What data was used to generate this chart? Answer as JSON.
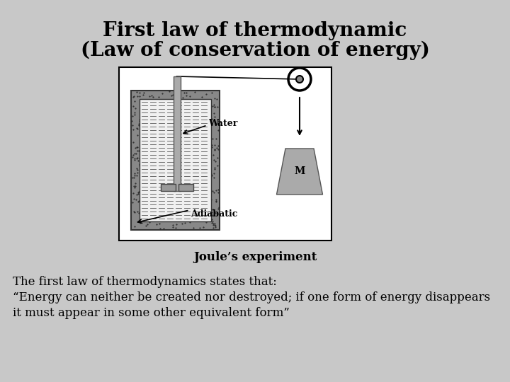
{
  "title_line1": "First law of thermodynamic",
  "title_line2": "(Law of conservation of energy)",
  "caption": "Joule’s experiment",
  "body_line1": "The first law of thermodynamics states that:",
  "body_line2": "“Energy can neither be created nor destroyed; if one form of energy disappears",
  "body_line3": "it must appear in some other equivalent form”",
  "bg_color": "#c8c8c8",
  "title_fontsize": 20,
  "caption_fontsize": 12,
  "body_fontsize": 12
}
